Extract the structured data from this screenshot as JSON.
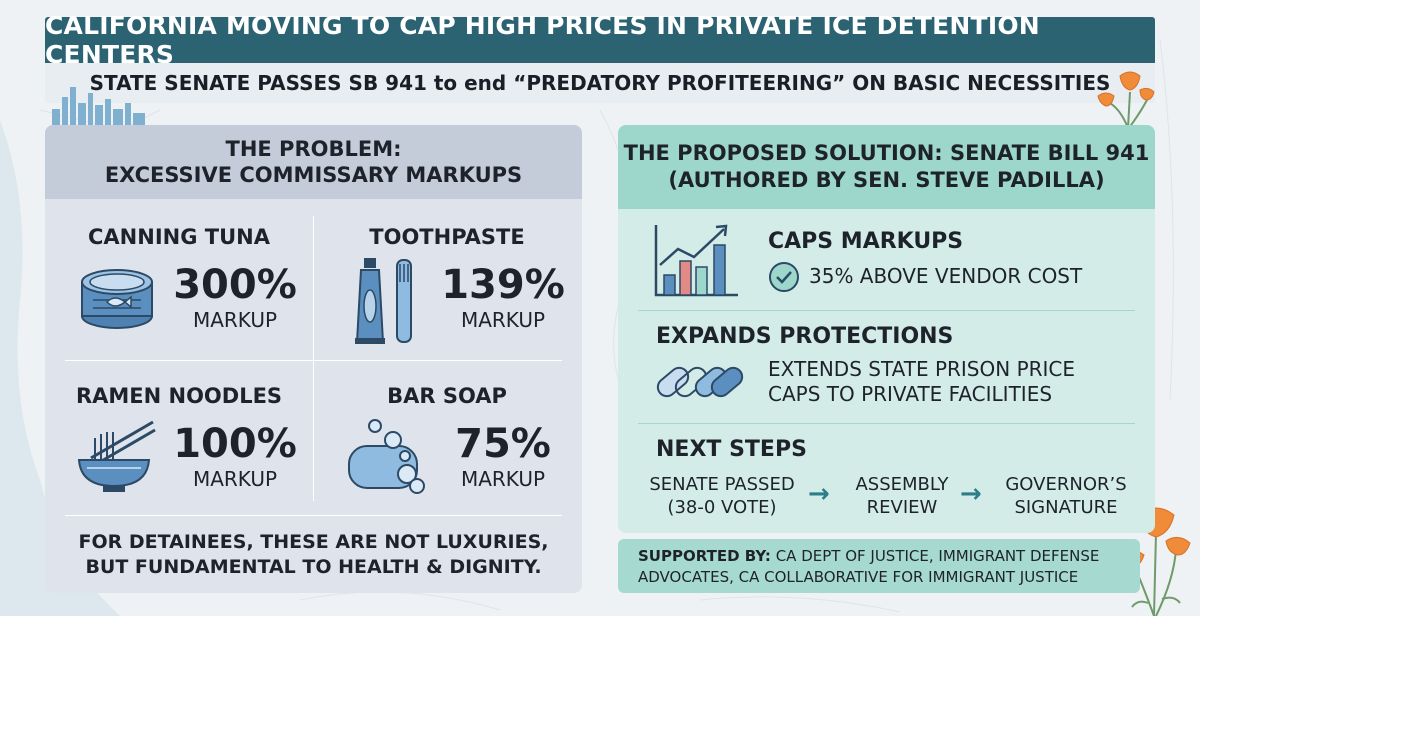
{
  "header": {
    "title": "CALIFORNIA MOVING TO CAP HIGH PRICES IN PRIVATE ICE DETENTION CENTERS",
    "subtitle": "STATE SENATE PASSES SB 941  to end “PREDATORY PROFITEERING” ON BASIC NECESSITIES"
  },
  "problem": {
    "heading_line1": "THE PROBLEM:",
    "heading_line2": "EXCESSIVE COMMISSARY MARKUPS",
    "items": [
      {
        "name": "CANNING TUNA",
        "value": "300%",
        "unit": "MARKUP",
        "icon": "tuna-can-icon"
      },
      {
        "name": "TOOTHPASTE",
        "value": "139%",
        "unit": "MARKUP",
        "icon": "toothpaste-icon"
      },
      {
        "name": "RAMEN NOODLES",
        "value": "100%",
        "unit": "MARKUP",
        "icon": "noodle-bowl-icon"
      },
      {
        "name": "BAR SOAP",
        "value": "75%",
        "unit": "MARKUP",
        "icon": "soap-icon"
      }
    ],
    "note_line1": "FOR DETAINEES, THESE ARE NOT LUXURIES,",
    "note_line2": "BUT FUNDAMENTAL TO HEALTH & DIGNITY."
  },
  "solution": {
    "heading_line1": "THE PROPOSED SOLUTION: SENATE BILL 941",
    "heading_line2": "(AUTHORED BY SEN. STEVE PADILLA)",
    "caps": {
      "title": "CAPS MARKUPS",
      "detail": "35% ABOVE VENDOR COST",
      "icon": "bar-chart-icon"
    },
    "expands": {
      "title": "EXPANDS PROTECTIONS",
      "line1": "EXTENDS STATE PRISON PRICE",
      "line2": "CAPS TO PRIVATE FACILITIES",
      "icon": "chain-link-icon"
    },
    "next": {
      "title": "NEXT STEPS",
      "steps": [
        {
          "line1": "SENATE PASSED",
          "line2": "(38-0 VOTE)"
        },
        {
          "line1": "ASSEMBLY",
          "line2": "REVIEW"
        },
        {
          "line1": "GOVERNOR’S",
          "line2": "SIGNATURE"
        }
      ]
    }
  },
  "supported": {
    "label": "SUPPORTED BY:",
    "line1_rest": " CA DEPT OF JUSTICE, IMMIGRANT DEFENSE",
    "line2": "ADVOCATES, CA COLLABORATIVE FOR IMMIGRANT JUSTICE"
  },
  "colors": {
    "title_bar": "#2b6373",
    "problem_panel": "#dfe4ec",
    "problem_head": "#c5ccd9",
    "solution_panel": "#d4ece8",
    "solution_head": "#9dd7cc",
    "icon_blue": "#5b8fc0",
    "arrow_teal": "#2d7d8a",
    "poppy_orange": "#f08b3a"
  }
}
